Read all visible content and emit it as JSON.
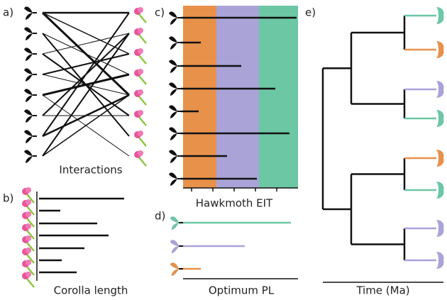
{
  "panels": [
    {
      "label": "a)",
      "axis_label": "Interactions"
    },
    {
      "label": "b)",
      "axis_label": "Corolla length"
    },
    {
      "label": "c)",
      "axis_label": "Hawkmoth EIT"
    },
    {
      "label": "d)",
      "axis_label": "Optimum PL"
    },
    {
      "label": "e)",
      "axis_label": "Time (Ma)"
    }
  ]
}
